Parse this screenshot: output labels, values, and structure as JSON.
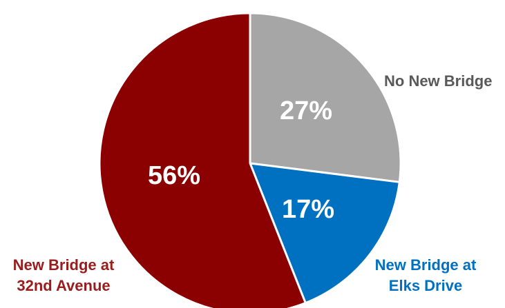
{
  "chart_data": {
    "type": "pie",
    "title": "",
    "slices": [
      {
        "name": "No New Bridge",
        "label_lines": [
          "No New Bridge"
        ],
        "value": 27,
        "value_label": "27%",
        "color": "#a6a6a6",
        "label_color": "#595959"
      },
      {
        "name": "New Bridge at Elks Drive",
        "label_lines": [
          "New Bridge at",
          "Elks Drive"
        ],
        "value": 17,
        "value_label": "17%",
        "color": "#0070c0",
        "label_color": "#0070c0"
      },
      {
        "name": "New Bridge at 32nd Avenue",
        "label_lines": [
          "New Bridge at",
          "32nd Avenue"
        ],
        "value": 56,
        "value_label": "56%",
        "color": "#8b0000",
        "label_color": "#9b1c1c"
      }
    ],
    "start_angle": "12 o'clock",
    "direction": "clockwise",
    "legend": "none"
  }
}
